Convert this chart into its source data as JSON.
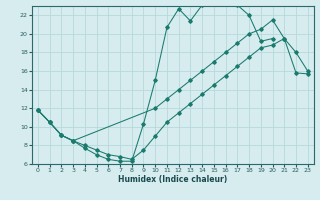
{
  "xlabel": "Humidex (Indice chaleur)",
  "bg_color": "#d6ecee",
  "grid_color": "#b8d8dc",
  "line_color": "#1a7a6e",
  "xlim": [
    -0.5,
    23.5
  ],
  "ylim": [
    6,
    23
  ],
  "xticks": [
    0,
    1,
    2,
    3,
    4,
    5,
    6,
    7,
    8,
    9,
    10,
    11,
    12,
    13,
    14,
    15,
    16,
    17,
    18,
    19,
    20,
    21,
    22,
    23
  ],
  "yticks": [
    6,
    8,
    10,
    12,
    14,
    16,
    18,
    20,
    22
  ],
  "curve1_x": [
    0,
    1,
    2,
    3,
    4,
    5,
    6,
    7,
    8,
    9,
    10,
    11,
    12,
    13,
    14,
    15,
    16,
    17,
    18,
    19,
    20
  ],
  "curve1_y": [
    11.8,
    10.5,
    9.1,
    8.5,
    7.7,
    7.0,
    6.5,
    6.3,
    6.3,
    10.3,
    15.0,
    20.7,
    22.7,
    21.4,
    23.1,
    23.4,
    23.5,
    23.1,
    22.0,
    19.2,
    19.5
  ],
  "curve2_x": [
    0,
    1,
    2,
    3,
    10,
    11,
    12,
    13,
    14,
    15,
    16,
    17,
    18,
    19,
    20,
    21,
    22,
    23
  ],
  "curve2_y": [
    11.8,
    10.5,
    9.1,
    8.5,
    12.0,
    13.0,
    14.0,
    15.0,
    16.0,
    17.0,
    18.0,
    19.0,
    20.0,
    20.5,
    21.5,
    19.5,
    18.0,
    16.0
  ],
  "curve3_x": [
    0,
    1,
    2,
    3,
    4,
    5,
    6,
    7,
    8,
    9,
    10,
    11,
    12,
    13,
    14,
    15,
    16,
    17,
    18,
    19,
    20,
    21,
    22,
    23
  ],
  "curve3_y": [
    11.8,
    10.5,
    9.1,
    8.5,
    8.0,
    7.5,
    7.0,
    6.8,
    6.5,
    7.5,
    9.0,
    10.5,
    11.5,
    12.5,
    13.5,
    14.5,
    15.5,
    16.5,
    17.5,
    18.5,
    18.8,
    19.5,
    15.8,
    15.7
  ]
}
